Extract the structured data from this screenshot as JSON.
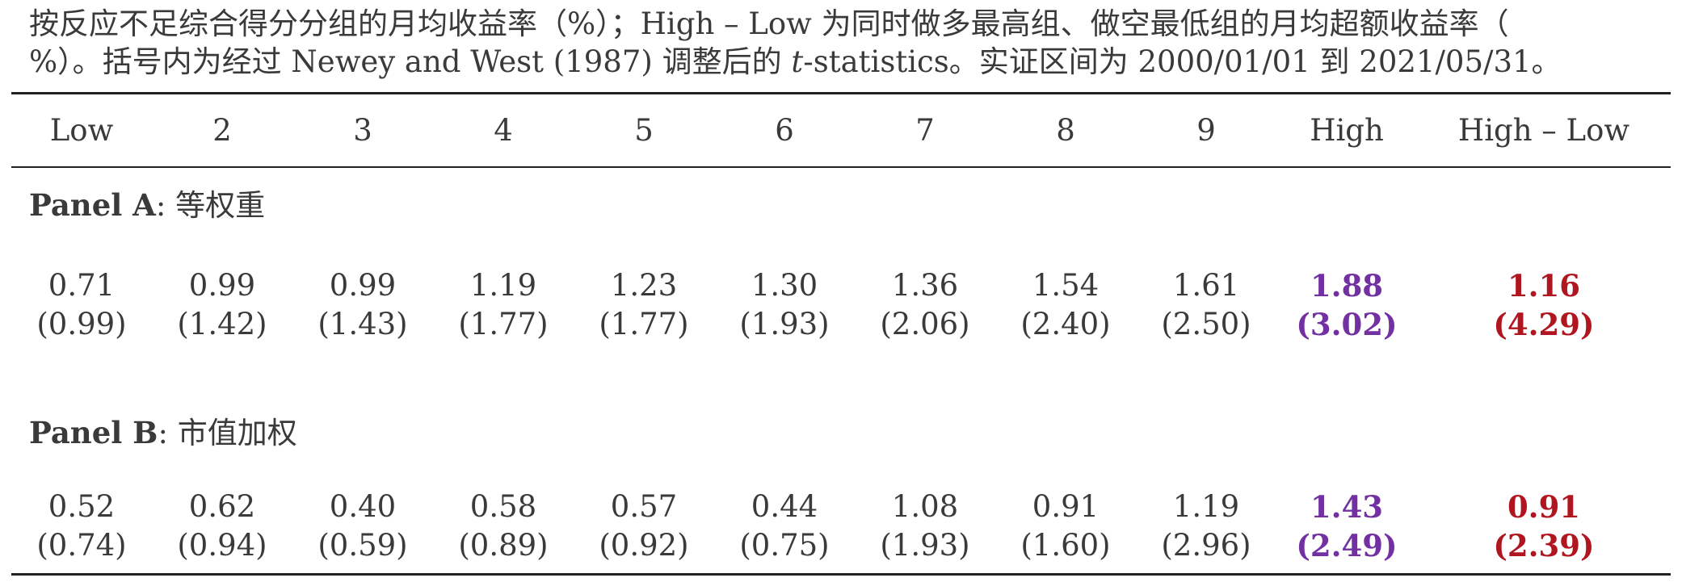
{
  "caption": {
    "line1": "按反应不足综合得分分组的月均收益率（%）；High – Low 为同时做多最高组、做空最低组的月均超额收益率（",
    "line2_pre": "%）。括号内为经过 Newey and West (1987) 调整后的 ",
    "line2_t": "t",
    "line2_post": "-statistics。实证区间为 2000/01/01 到 2021/05/31。"
  },
  "colors": {
    "high": "#7330a3",
    "high_minus_low": "#b0161f",
    "text": "#3a3a3a"
  },
  "table": {
    "headers": [
      "Low",
      "2",
      "3",
      "4",
      "5",
      "6",
      "7",
      "8",
      "9",
      "High",
      "High – Low"
    ],
    "panels": [
      {
        "label": "Panel A",
        "sep": ":",
        "title": "等权重",
        "coef": [
          "0.71",
          "0.99",
          "0.99",
          "1.19",
          "1.23",
          "1.30",
          "1.36",
          "1.54",
          "1.61",
          "1.88",
          "1.16"
        ],
        "tstat": [
          "(0.99)",
          "(1.42)",
          "(1.43)",
          "(1.77)",
          "(1.77)",
          "(1.93)",
          "(2.06)",
          "(2.40)",
          "(2.50)",
          "(3.02)",
          "(4.29)"
        ]
      },
      {
        "label": "Panel B",
        "sep": ":",
        "title": "市值加权",
        "coef": [
          "0.52",
          "0.62",
          "0.40",
          "0.58",
          "0.57",
          "0.44",
          "1.08",
          "0.91",
          "1.19",
          "1.43",
          "0.91"
        ],
        "tstat": [
          "(0.74)",
          "(0.94)",
          "(0.59)",
          "(0.89)",
          "(0.92)",
          "(0.75)",
          "(1.93)",
          "(1.60)",
          "(2.96)",
          "(2.49)",
          "(2.39)"
        ]
      }
    ]
  }
}
